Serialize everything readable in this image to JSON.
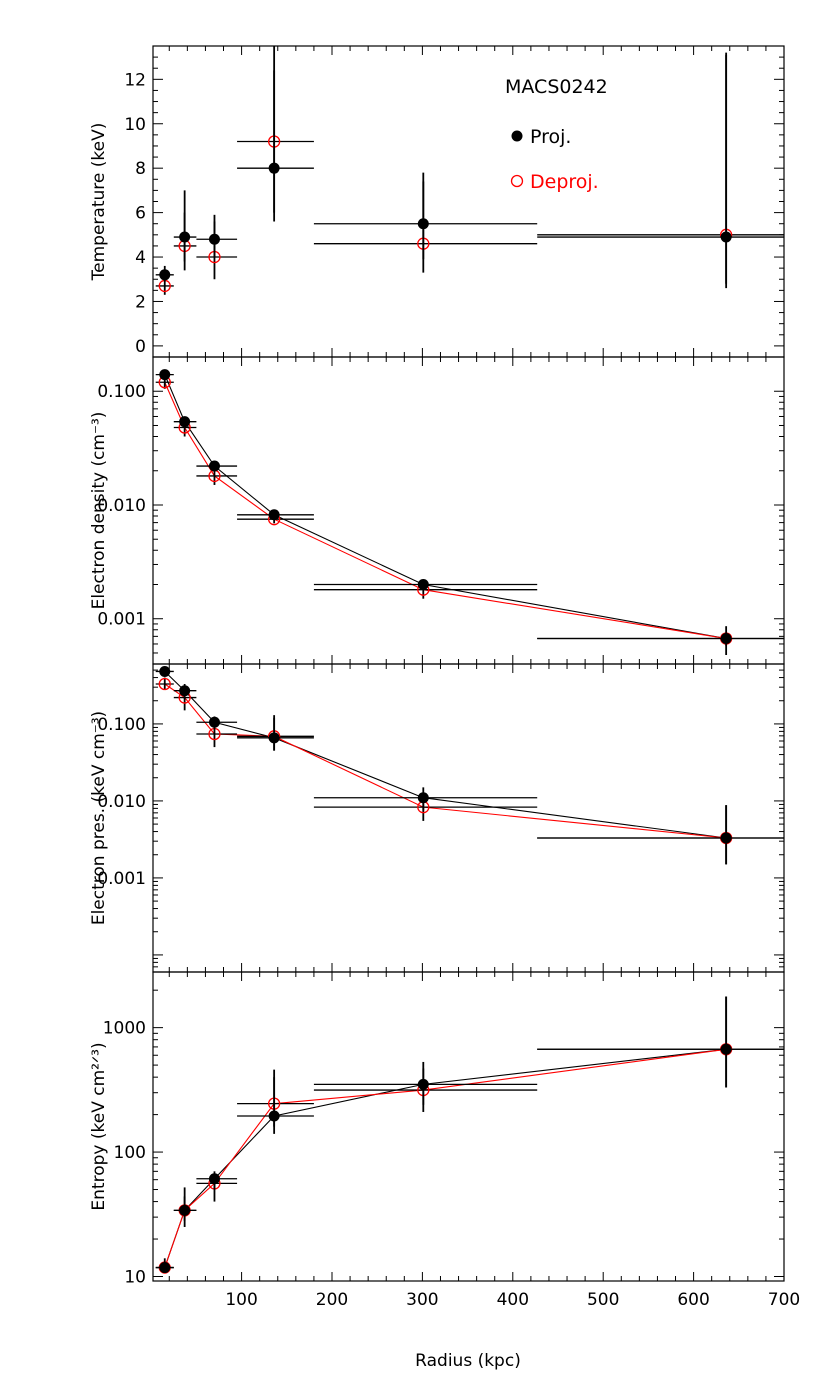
{
  "chart_data": {
    "type": "scatter",
    "shared_x": {
      "label": "Radius (kpc)",
      "range": [
        2,
        700
      ],
      "ticks": [
        100,
        200,
        300,
        400,
        500,
        600,
        700
      ],
      "tick_labels": [
        "100",
        "200",
        "300",
        "400",
        "500",
        "600",
        "700"
      ]
    },
    "legend": {
      "title": "MACS0242",
      "entries": [
        {
          "label": "Proj.",
          "color": "#000000",
          "marker": "filled-circle"
        },
        {
          "label": "Deproj.",
          "color": "#ff0000",
          "marker": "open-circle"
        }
      ],
      "placement": "top-right of first panel"
    },
    "panels": [
      {
        "ylabel": "Temperature (keV)",
        "yscale": "linear",
        "ylim": [
          -0.5,
          13.5
        ],
        "yticks": [
          0,
          2,
          4,
          6,
          8,
          10,
          12
        ],
        "ytick_labels": [
          "0",
          "2",
          "4",
          "6",
          "8",
          "10",
          "12"
        ],
        "connect_lines": false,
        "series": [
          {
            "name": "Proj.",
            "color": "#000000",
            "marker": "filled",
            "points": [
              {
                "x": 15,
                "xlo": 5,
                "xhi": 25,
                "y": 3.2,
                "ylo": 2.9,
                "yhi": 3.6
              },
              {
                "x": 37,
                "xlo": 25,
                "xhi": 50,
                "y": 4.9,
                "ylo": 3.8,
                "yhi": 6.0
              },
              {
                "x": 70,
                "xlo": 50,
                "xhi": 95,
                "y": 4.8,
                "ylo": 4.0,
                "yhi": 5.6
              },
              {
                "x": 136,
                "xlo": 95,
                "xhi": 180,
                "y": 8.0,
                "ylo": 6.0,
                "yhi": 12.4
              },
              {
                "x": 301,
                "xlo": 180,
                "xhi": 427,
                "y": 5.5,
                "ylo": 3.9,
                "yhi": 7.4
              },
              {
                "x": 636,
                "xlo": 427,
                "xhi": 700,
                "y": 4.9,
                "ylo": 2.8,
                "yhi": 13.1
              }
            ]
          },
          {
            "name": "Deproj.",
            "color": "#ff0000",
            "marker": "open",
            "points": [
              {
                "x": 15,
                "xlo": 5,
                "xhi": 25,
                "y": 2.7,
                "ylo": 2.3,
                "yhi": 3.1
              },
              {
                "x": 37,
                "xlo": 25,
                "xhi": 50,
                "y": 4.5,
                "ylo": 3.4,
                "yhi": 7.0
              },
              {
                "x": 70,
                "xlo": 50,
                "xhi": 95,
                "y": 4.0,
                "ylo": 3.0,
                "yhi": 5.9
              },
              {
                "x": 136,
                "xlo": 95,
                "xhi": 180,
                "y": 9.2,
                "ylo": 5.6,
                "yhi": 13.5
              },
              {
                "x": 301,
                "xlo": 180,
                "xhi": 427,
                "y": 4.6,
                "ylo": 3.3,
                "yhi": 7.8
              },
              {
                "x": 636,
                "xlo": 427,
                "xhi": 700,
                "y": 5.0,
                "ylo": 2.6,
                "yhi": 13.2
              }
            ]
          }
        ]
      },
      {
        "ylabel": "Electron density (cm⁻³)",
        "yscale": "log",
        "ylim": [
          0.0004,
          0.2
        ],
        "yticks": [
          0.001,
          0.01,
          0.1
        ],
        "ytick_labels": [
          "0.001",
          "0.010",
          "0.100"
        ],
        "connect_lines": true,
        "series": [
          {
            "name": "Proj.",
            "color": "#000000",
            "marker": "filled",
            "points": [
              {
                "x": 15,
                "xlo": 5,
                "xhi": 25,
                "y": 0.14,
                "ylo": 0.125,
                "yhi": 0.155
              },
              {
                "x": 37,
                "xlo": 25,
                "xhi": 50,
                "y": 0.054,
                "ylo": 0.048,
                "yhi": 0.06
              },
              {
                "x": 70,
                "xlo": 50,
                "xhi": 95,
                "y": 0.022,
                "ylo": 0.02,
                "yhi": 0.024
              },
              {
                "x": 136,
                "xlo": 95,
                "xhi": 180,
                "y": 0.0082,
                "ylo": 0.0076,
                "yhi": 0.0088
              },
              {
                "x": 301,
                "xlo": 180,
                "xhi": 427,
                "y": 0.002,
                "ylo": 0.00185,
                "yhi": 0.00215
              },
              {
                "x": 636,
                "xlo": 427,
                "xhi": 700,
                "y": 0.00067,
                "ylo": 0.00058,
                "yhi": 0.00076
              }
            ]
          },
          {
            "name": "Deproj.",
            "color": "#ff0000",
            "marker": "open",
            "points": [
              {
                "x": 15,
                "xlo": 5,
                "xhi": 25,
                "y": 0.12,
                "ylo": 0.105,
                "yhi": 0.135
              },
              {
                "x": 37,
                "xlo": 25,
                "xhi": 50,
                "y": 0.048,
                "ylo": 0.04,
                "yhi": 0.055
              },
              {
                "x": 70,
                "xlo": 50,
                "xhi": 95,
                "y": 0.018,
                "ylo": 0.015,
                "yhi": 0.021
              },
              {
                "x": 136,
                "xlo": 95,
                "xhi": 180,
                "y": 0.0075,
                "ylo": 0.0069,
                "yhi": 0.0081
              },
              {
                "x": 301,
                "xlo": 180,
                "xhi": 427,
                "y": 0.0018,
                "ylo": 0.0015,
                "yhi": 0.0021
              },
              {
                "x": 636,
                "xlo": 427,
                "xhi": 700,
                "y": 0.00067,
                "ylo": 0.00048,
                "yhi": 0.00086
              }
            ]
          }
        ]
      },
      {
        "ylabel": "Electron pres. (keV cm⁻³)",
        "yscale": "log",
        "ylim": [
          6e-05,
          0.6
        ],
        "yticks": [
          0.001,
          0.01,
          0.1
        ],
        "ytick_labels": [
          "0.001",
          "0.010",
          "0.100"
        ],
        "connect_lines": true,
        "series": [
          {
            "name": "Proj.",
            "color": "#000000",
            "marker": "filled",
            "points": [
              {
                "x": 15,
                "xlo": 5,
                "xhi": 25,
                "y": 0.48,
                "ylo": 0.42,
                "yhi": 0.55
              },
              {
                "x": 37,
                "xlo": 25,
                "xhi": 50,
                "y": 0.27,
                "ylo": 0.21,
                "yhi": 0.33
              },
              {
                "x": 70,
                "xlo": 50,
                "xhi": 95,
                "y": 0.105,
                "ylo": 0.085,
                "yhi": 0.125
              },
              {
                "x": 136,
                "xlo": 95,
                "xhi": 180,
                "y": 0.066,
                "ylo": 0.045,
                "yhi": 0.13
              },
              {
                "x": 301,
                "xlo": 180,
                "xhi": 427,
                "y": 0.011,
                "ylo": 0.0075,
                "yhi": 0.015
              },
              {
                "x": 636,
                "xlo": 427,
                "xhi": 700,
                "y": 0.0033,
                "ylo": 0.0015,
                "yhi": 0.0088
              }
            ]
          },
          {
            "name": "Deproj.",
            "color": "#ff0000",
            "marker": "open",
            "points": [
              {
                "x": 15,
                "xlo": 5,
                "xhi": 25,
                "y": 0.33,
                "ylo": 0.28,
                "yhi": 0.4
              },
              {
                "x": 37,
                "xlo": 25,
                "xhi": 50,
                "y": 0.22,
                "ylo": 0.15,
                "yhi": 0.28
              },
              {
                "x": 70,
                "xlo": 50,
                "xhi": 95,
                "y": 0.074,
                "ylo": 0.05,
                "yhi": 0.1
              },
              {
                "x": 136,
                "xlo": 95,
                "xhi": 180,
                "y": 0.069,
                "ylo": 0.045,
                "yhi": 0.12
              },
              {
                "x": 301,
                "xlo": 180,
                "xhi": 427,
                "y": 0.0083,
                "ylo": 0.0055,
                "yhi": 0.011
              },
              {
                "x": 636,
                "xlo": 427,
                "xhi": 700,
                "y": 0.0033,
                "ylo": 0.0015,
                "yhi": 0.0088
              }
            ]
          }
        ]
      },
      {
        "ylabel": "Entropy (keV cm²ᐟ³)",
        "yscale": "log",
        "ylim": [
          9.2,
          2800
        ],
        "yticks": [
          10,
          100,
          1000
        ],
        "ytick_labels": [
          "10",
          "100",
          "1000"
        ],
        "connect_lines": true,
        "series": [
          {
            "name": "Proj.",
            "color": "#000000",
            "marker": "filled",
            "points": [
              {
                "x": 15,
                "xlo": 5,
                "xhi": 25,
                "y": 11.8,
                "ylo": 11.0,
                "yhi": 14.0
              },
              {
                "x": 37,
                "xlo": 25,
                "xhi": 50,
                "y": 34,
                "ylo": 25,
                "yhi": 52
              },
              {
                "x": 70,
                "xlo": 50,
                "xhi": 95,
                "y": 61,
                "ylo": 50,
                "yhi": 70
              },
              {
                "x": 136,
                "xlo": 95,
                "xhi": 180,
                "y": 195,
                "ylo": 140,
                "yhi": 460
              },
              {
                "x": 301,
                "xlo": 180,
                "xhi": 427,
                "y": 350,
                "ylo": 240,
                "yhi": 530
              },
              {
                "x": 636,
                "xlo": 427,
                "xhi": 700,
                "y": 670,
                "ylo": 330,
                "yhi": 1780
              }
            ]
          },
          {
            "name": "Deproj.",
            "color": "#ff0000",
            "marker": "open",
            "points": [
              {
                "x": 15,
                "xlo": 5,
                "xhi": 25,
                "y": 11.8,
                "ylo": 10.6,
                "yhi": 13.2
              },
              {
                "x": 37,
                "xlo": 25,
                "xhi": 50,
                "y": 34,
                "ylo": 28,
                "yhi": 44
              },
              {
                "x": 70,
                "xlo": 50,
                "xhi": 95,
                "y": 56,
                "ylo": 40,
                "yhi": 66
              },
              {
                "x": 136,
                "xlo": 95,
                "xhi": 180,
                "y": 245,
                "ylo": 160,
                "yhi": 400
              },
              {
                "x": 301,
                "xlo": 180,
                "xhi": 427,
                "y": 315,
                "ylo": 210,
                "yhi": 470
              },
              {
                "x": 636,
                "xlo": 427,
                "xhi": 700,
                "y": 670,
                "ylo": 330,
                "yhi": 1780
              }
            ]
          }
        ]
      }
    ]
  }
}
